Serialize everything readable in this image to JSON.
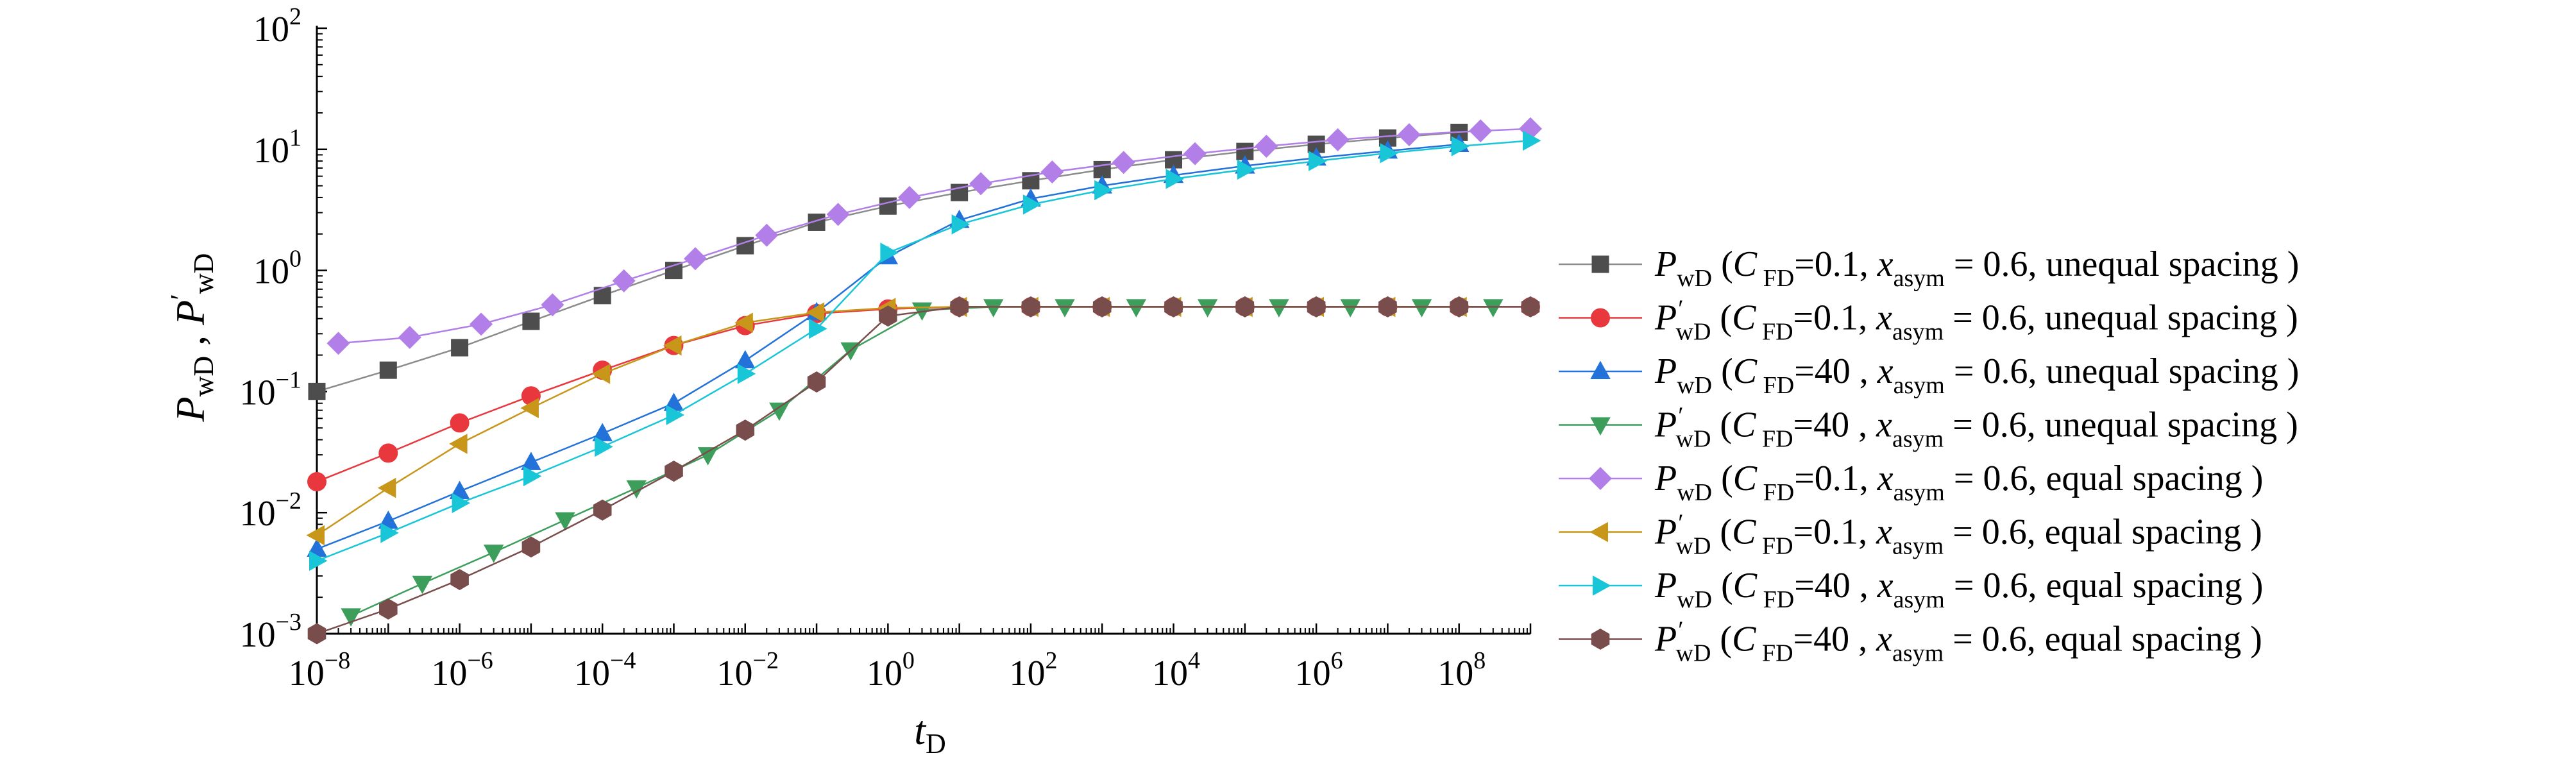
{
  "chart_data": {
    "type": "line",
    "xscale": "log",
    "yscale": "log",
    "xlim": [
      1e-08,
      1000000000.0
    ],
    "ylim": [
      0.001,
      100
    ],
    "xlabel": {
      "base": "t",
      "sub": "D"
    },
    "ylabel": {
      "p1": "P",
      "s1": "wD",
      "sep": " , ",
      "p2": "P",
      "prime": "′",
      "s2": "wD"
    },
    "x_ticks": [
      {
        "value": 1e-08,
        "label_base": "10",
        "label_exp": "−8"
      },
      {
        "value": 1e-06,
        "label_base": "10",
        "label_exp": "−6"
      },
      {
        "value": 0.0001,
        "label_base": "10",
        "label_exp": "−4"
      },
      {
        "value": 0.01,
        "label_base": "10",
        "label_exp": "−2"
      },
      {
        "value": 1,
        "label_base": "10",
        "label_exp": "0"
      },
      {
        "value": 100,
        "label_base": "10",
        "label_exp": "2"
      },
      {
        "value": 10000,
        "label_base": "10",
        "label_exp": "4"
      },
      {
        "value": 1000000,
        "label_base": "10",
        "label_exp": "6"
      },
      {
        "value": 100000000,
        "label_base": "10",
        "label_exp": "8"
      }
    ],
    "y_ticks": [
      {
        "value": 0.001,
        "label_base": "10",
        "label_exp": "−3"
      },
      {
        "value": 0.01,
        "label_base": "10",
        "label_exp": "−2"
      },
      {
        "value": 0.1,
        "label_base": "10",
        "label_exp": "−1"
      },
      {
        "value": 1,
        "label_base": "10",
        "label_exp": "0"
      },
      {
        "value": 10,
        "label_base": "10",
        "label_exp": "1"
      },
      {
        "value": 100,
        "label_base": "10",
        "label_exp": "2"
      }
    ],
    "legend_position": "right",
    "series": [
      {
        "name": "P_wD (C_FD=0.1, x_asym = 0.6, unequal spacing )",
        "symbol": "P",
        "sub": "wD",
        "prime": false,
        "cfd": "0.1",
        "cfd_sep": "",
        "xasym": "0.6",
        "spacing": "unequal spacing",
        "color": "#4d4d4d",
        "line_color": "#8c8c8c",
        "marker": "square",
        "x": [
          1e-08,
          1e-07,
          1e-06,
          1e-05,
          0.0001,
          0.001,
          0.01,
          0.1,
          1,
          10,
          100,
          1000,
          10000,
          100000,
          1000000,
          10000000,
          100000000
        ],
        "y": [
          0.1,
          0.15,
          0.23,
          0.38,
          0.62,
          1.0,
          1.6,
          2.5,
          3.4,
          4.4,
          5.5,
          6.8,
          8.2,
          9.6,
          11.0,
          12.4,
          13.8
        ]
      },
      {
        "name": "P'_wD (C_FD=0.1, x_asym = 0.6, unequal spacing )",
        "symbol": "P",
        "sub": "wD",
        "prime": true,
        "cfd": "0.1",
        "cfd_sep": "",
        "xasym": "0.6",
        "spacing": "unequal spacing",
        "color": "#e8383d",
        "line_color": "#e8383d",
        "marker": "circle",
        "x": [
          1e-08,
          1e-07,
          1e-06,
          1e-05,
          0.0001,
          0.001,
          0.01,
          0.1,
          1,
          10,
          100,
          1000,
          10000,
          100000,
          1000000,
          10000000,
          100000000,
          1000000000
        ],
        "y": [
          0.018,
          0.031,
          0.055,
          0.092,
          0.15,
          0.24,
          0.35,
          0.44,
          0.48,
          0.5,
          0.5,
          0.5,
          0.5,
          0.5,
          0.5,
          0.5,
          0.5,
          0.5
        ]
      },
      {
        "name": "P_wD (C_FD=40 , x_asym = 0.6, unequal spacing )",
        "symbol": "P",
        "sub": "wD",
        "prime": false,
        "cfd": "40",
        "cfd_sep": " ",
        "xasym": "0.6",
        "spacing": "unequal spacing",
        "color": "#2272d9",
        "line_color": "#2272d9",
        "marker": "triangle-up",
        "x": [
          1e-08,
          1e-07,
          1e-06,
          1e-05,
          0.0001,
          0.001,
          0.01,
          0.1,
          1,
          10,
          100,
          1000,
          10000,
          100000,
          1000000,
          10000000,
          100000000
        ],
        "y": [
          0.005,
          0.0085,
          0.015,
          0.026,
          0.045,
          0.08,
          0.18,
          0.45,
          1.3,
          2.6,
          3.9,
          5.0,
          6.1,
          7.3,
          8.5,
          9.7,
          11.0
        ]
      },
      {
        "name": "P'_wD (C_FD=40 , x_asym = 0.6, unequal spacing )",
        "symbol": "P",
        "sub": "wD",
        "prime": true,
        "cfd": "40",
        "cfd_sep": " ",
        "xasym": "0.6",
        "spacing": "unequal spacing",
        "color": "#3d9e5c",
        "line_color": "#3d9e5c",
        "marker": "triangle-down",
        "x": [
          3e-08,
          3e-07,
          3e-06,
          3e-05,
          0.0003,
          0.003,
          0.03,
          0.3,
          3,
          30,
          300,
          3000,
          30000,
          300000,
          3000000,
          30000000,
          300000000
        ],
        "y": [
          0.0014,
          0.0026,
          0.0047,
          0.0087,
          0.016,
          0.03,
          0.07,
          0.22,
          0.47,
          0.5,
          0.5,
          0.5,
          0.5,
          0.5,
          0.5,
          0.5,
          0.5
        ]
      },
      {
        "name": "P_wD (C_FD=0.1, x_asym = 0.6, equal spacing )",
        "symbol": "P",
        "sub": "wD",
        "prime": false,
        "cfd": "0.1",
        "cfd_sep": "",
        "xasym": "0.6",
        "spacing": "equal spacing",
        "color": "#b27ee8",
        "line_color": "#b27ee8",
        "marker": "diamond",
        "x": [
          2e-08,
          2e-07,
          2e-06,
          2e-05,
          0.0002,
          0.002,
          0.02,
          0.2,
          2,
          20,
          200,
          2000,
          20000,
          200000,
          2000000,
          20000000,
          200000000,
          1000000000
        ],
        "y": [
          0.25,
          0.28,
          0.36,
          0.52,
          0.82,
          1.25,
          1.95,
          2.9,
          4.0,
          5.2,
          6.5,
          7.8,
          9.2,
          10.6,
          12.0,
          13.2,
          14.2,
          14.8
        ]
      },
      {
        "name": "P'_wD (C_FD=0.1, x_asym = 0.6, equal spacing )",
        "symbol": "P",
        "sub": "wD",
        "prime": true,
        "cfd": "0.1",
        "cfd_sep": "",
        "xasym": "0.6",
        "spacing": "equal spacing",
        "color": "#c8971a",
        "line_color": "#c8971a",
        "marker": "triangle-left",
        "x": [
          1e-08,
          1e-07,
          1e-06,
          1e-05,
          0.0001,
          0.001,
          0.01,
          0.1,
          1,
          10,
          100,
          1000,
          10000,
          100000,
          1000000,
          10000000,
          100000000
        ],
        "y": [
          0.0065,
          0.016,
          0.037,
          0.073,
          0.14,
          0.24,
          0.37,
          0.45,
          0.49,
          0.5,
          0.5,
          0.5,
          0.5,
          0.5,
          0.5,
          0.5,
          0.5
        ]
      },
      {
        "name": "P_wD (C_FD=40 , x_asym = 0.6, equal spacing )",
        "symbol": "P",
        "sub": "wD",
        "prime": false,
        "cfd": "40",
        "cfd_sep": " ",
        "xasym": "0.6",
        "spacing": "equal spacing",
        "color": "#19c6d8",
        "line_color": "#19c6d8",
        "marker": "triangle-right",
        "x": [
          1e-08,
          1e-07,
          1e-06,
          1e-05,
          0.0001,
          0.001,
          0.01,
          0.1,
          1,
          10,
          100,
          1000,
          10000,
          100000,
          1000000,
          10000000,
          100000000,
          1000000000
        ],
        "y": [
          0.004,
          0.0068,
          0.012,
          0.02,
          0.035,
          0.064,
          0.14,
          0.33,
          1.4,
          2.4,
          3.5,
          4.6,
          5.7,
          6.8,
          8.0,
          9.3,
          10.6,
          11.8
        ]
      },
      {
        "name": "P'_wD (C_FD=40 , x_asym = 0.6, equal spacing )",
        "symbol": "P",
        "sub": "wD",
        "prime": true,
        "cfd": "40",
        "cfd_sep": " ",
        "xasym": "0.6",
        "spacing": "equal spacing",
        "color": "#7a4d4d",
        "line_color": "#7a4d4d",
        "marker": "hexagon",
        "x": [
          1e-08,
          1e-07,
          1e-06,
          1e-05,
          0.0001,
          0.001,
          0.01,
          0.1,
          1,
          10,
          100,
          1000,
          10000,
          100000,
          1000000,
          10000000,
          100000000,
          1000000000
        ],
        "y": [
          0.001,
          0.0016,
          0.0028,
          0.0052,
          0.0105,
          0.022,
          0.048,
          0.12,
          0.42,
          0.5,
          0.5,
          0.5,
          0.5,
          0.5,
          0.5,
          0.5,
          0.5,
          0.5
        ]
      }
    ]
  }
}
